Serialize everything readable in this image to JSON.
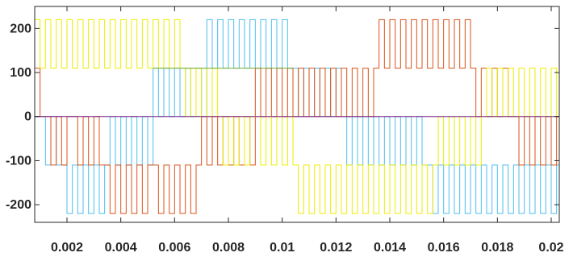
{
  "chart_data": {
    "type": "line",
    "title": "",
    "xlabel": "",
    "ylabel": "",
    "xlim": [
      0.0008,
      0.0203
    ],
    "ylim": [
      -240,
      250
    ],
    "grid": false,
    "x_ticks": [
      0.002,
      0.004,
      0.006,
      0.008,
      0.01,
      0.012,
      0.014,
      0.016,
      0.018,
      0.02
    ],
    "x_tick_labels": [
      "0.002",
      "0.004",
      "0.006",
      "0.008",
      "0.01",
      "0.012",
      "0.014",
      "0.016",
      "0.018",
      "0.02"
    ],
    "y_ticks": [
      200,
      100,
      0,
      -100,
      -200
    ],
    "y_tick_labels": [
      "200",
      "100",
      "0",
      "-100",
      "-200"
    ],
    "pulse_period": 0.0004,
    "series": [
      {
        "color": "#4DBEEE",
        "segments": [
          {
            "x0": 0.0008,
            "x1": 0.001,
            "hi": 0,
            "lo": 0
          },
          {
            "x0": 0.001,
            "x1": 0.0018,
            "hi": 0,
            "lo": -110
          },
          {
            "x0": 0.0018,
            "x1": 0.0036,
            "hi": -110,
            "lo": -220
          },
          {
            "x0": 0.0036,
            "x1": 0.0052,
            "hi": 0,
            "lo": -110
          },
          {
            "x0": 0.0052,
            "x1": 0.0072,
            "hi": 110,
            "lo": 0
          },
          {
            "x0": 0.0072,
            "x1": 0.0104,
            "hi": 220,
            "lo": 110
          },
          {
            "x0": 0.0104,
            "x1": 0.0122,
            "hi": 110,
            "lo": 0
          },
          {
            "x0": 0.0122,
            "x1": 0.0154,
            "hi": 0,
            "lo": -110
          },
          {
            "x0": 0.0154,
            "x1": 0.017,
            "hi": -110,
            "lo": -220
          },
          {
            "x0": 0.017,
            "x1": 0.0203,
            "hi": -110,
            "lo": -220
          }
        ]
      },
      {
        "color": "#D95319",
        "segments": [
          {
            "x0": 0.0008,
            "x1": 0.0012,
            "hi": 110,
            "lo": 0
          },
          {
            "x0": 0.0012,
            "x1": 0.0022,
            "hi": 0,
            "lo": -110
          },
          {
            "x0": 0.0022,
            "x1": 0.0034,
            "hi": 0,
            "lo": -110
          },
          {
            "x0": 0.0034,
            "x1": 0.0052,
            "hi": -110,
            "lo": -220
          },
          {
            "x0": 0.0052,
            "x1": 0.007,
            "hi": -110,
            "lo": -220
          },
          {
            "x0": 0.007,
            "x1": 0.009,
            "hi": 0,
            "lo": -110
          },
          {
            "x0": 0.009,
            "x1": 0.0106,
            "hi": 110,
            "lo": 0
          },
          {
            "x0": 0.0106,
            "x1": 0.0136,
            "hi": 110,
            "lo": 0
          },
          {
            "x0": 0.0136,
            "x1": 0.017,
            "hi": 220,
            "lo": 110
          },
          {
            "x0": 0.017,
            "x1": 0.0186,
            "hi": 110,
            "lo": 0
          },
          {
            "x0": 0.0186,
            "x1": 0.0203,
            "hi": 0,
            "lo": -110
          }
        ]
      },
      {
        "color": "#EDED00",
        "segments": [
          {
            "x0": 0.0008,
            "x1": 0.0024,
            "hi": 220,
            "lo": 110
          },
          {
            "x0": 0.0024,
            "x1": 0.0062,
            "hi": 220,
            "lo": 110
          },
          {
            "x0": 0.0062,
            "x1": 0.0076,
            "hi": 110,
            "lo": 0
          },
          {
            "x0": 0.0076,
            "x1": 0.009,
            "hi": 0,
            "lo": -110
          },
          {
            "x0": 0.009,
            "x1": 0.0104,
            "hi": 0,
            "lo": -110
          },
          {
            "x0": 0.0104,
            "x1": 0.014,
            "hi": -110,
            "lo": -220
          },
          {
            "x0": 0.014,
            "x1": 0.0158,
            "hi": -110,
            "lo": -220
          },
          {
            "x0": 0.0158,
            "x1": 0.0176,
            "hi": 0,
            "lo": -110
          },
          {
            "x0": 0.0176,
            "x1": 0.0203,
            "hi": 110,
            "lo": 0
          }
        ]
      },
      {
        "color": "#77AC30",
        "segments": [
          {
            "x0": 0.0052,
            "x1": 0.0072,
            "hi": 110,
            "lo": 110
          },
          {
            "x0": 0.0092,
            "x1": 0.0104,
            "hi": 110,
            "lo": 110
          }
        ]
      },
      {
        "color": "#7E2F8E",
        "segments": [
          {
            "x0": 0.0008,
            "x1": 0.0203,
            "hi": 0,
            "lo": 0
          }
        ]
      }
    ]
  }
}
